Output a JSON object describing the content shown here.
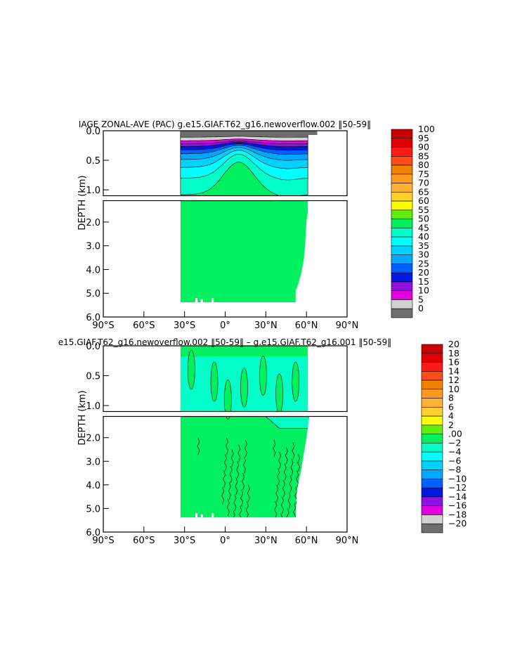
{
  "chart_data": [
    {
      "type": "heatmap",
      "subtype": "filled-contour",
      "title": "IAGE ZONAL-AVE (PAC) g.e15.GIAF.T62_g16.newoverflow.002  50-59 ",
      "title_display": "IAGE ZONAL-AVE (PAC) g.e15.GIAF.T62_g16.newoverflow.002 ‖50-59‖",
      "ylabel": "DEPTH (km)",
      "xlabel": "",
      "x_ticks": [
        "90°S",
        "60°S",
        "30°S",
        "0°",
        "30°N",
        "60°N",
        "90°N"
      ],
      "x_tick_values": [
        -90,
        -60,
        -30,
        0,
        30,
        60,
        90
      ],
      "xlim": [
        -90,
        90
      ],
      "y_ticks_upper": [
        "0.0",
        "0.5",
        "1.0"
      ],
      "y_ticks_upper_values": [
        0.0,
        0.5,
        1.0
      ],
      "y_ticks_lower": [
        "2.0",
        "3.0",
        "4.0",
        "5.0",
        "6.0"
      ],
      "y_ticks_lower_values": [
        2.0,
        3.0,
        4.0,
        5.0,
        6.0
      ],
      "ylim_upper": [
        0,
        1.1
      ],
      "ylim_lower": [
        1.1,
        6.0
      ],
      "data_extent_lat": [
        -33,
        64
      ],
      "colorbar": {
        "labels": [
          "100",
          "95",
          "90",
          "85",
          "80",
          "75",
          "70",
          "65",
          "60",
          "55",
          "50",
          "45",
          "40",
          "35",
          "30",
          "25",
          "20",
          "15",
          "10",
          "5",
          "0"
        ],
        "colors": [
          "#c80000",
          "#e00000",
          "#ff1a1a",
          "#ff4a1a",
          "#f08200",
          "#ff9a20",
          "#ffb030",
          "#ffd030",
          "#ffff00",
          "#60ee10",
          "#00f060",
          "#00ffc8",
          "#00ffff",
          "#00d2ff",
          "#00a8ff",
          "#0060ff",
          "#0018e0",
          "#9010e0",
          "#e000e0",
          "#d2d2d2",
          "#6e6e6e"
        ]
      },
      "dominant_value_range": "50-55"
    },
    {
      "type": "heatmap",
      "subtype": "filled-contour",
      "title": "e15.GIAF.T62_g16.newoverflow.002 ‖50-59‖ – g.e15.GIAF.T62_g16.001 ‖50-59‖",
      "ylabel": "DEPTH (km)",
      "xlabel": "",
      "x_ticks": [
        "90°S",
        "60°S",
        "30°S",
        "0°",
        "30°N",
        "60°N",
        "90°N"
      ],
      "x_tick_values": [
        -90,
        -60,
        -30,
        0,
        30,
        60,
        90
      ],
      "xlim": [
        -90,
        90
      ],
      "y_ticks_upper": [
        "0.0",
        "0.5",
        "1.0"
      ],
      "y_ticks_upper_values": [
        0.0,
        0.5,
        1.0
      ],
      "y_ticks_lower": [
        "2.0",
        "3.0",
        "4.0",
        "5.0",
        "6.0"
      ],
      "y_ticks_lower_values": [
        2.0,
        3.0,
        4.0,
        5.0,
        6.0
      ],
      "ylim_upper": [
        0,
        1.1
      ],
      "ylim_lower": [
        1.1,
        6.0
      ],
      "data_extent_lat": [
        -33,
        64
      ],
      "colorbar": {
        "labels": [
          "20",
          "18",
          "16",
          "14",
          "12",
          "10",
          "8",
          "6",
          "4",
          "2",
          ".00",
          "−2",
          "−4",
          "−6",
          "−8",
          "−10",
          "−12",
          "−14",
          "−16",
          "−18",
          "−20"
        ],
        "colors": [
          "#c80000",
          "#e00000",
          "#ff1a1a",
          "#ff4a1a",
          "#f08200",
          "#ff9a20",
          "#ffb030",
          "#ffd030",
          "#ffff00",
          "#60ee10",
          "#00f060",
          "#00ffc8",
          "#00ffff",
          "#00d2ff",
          "#00a8ff",
          "#0060ff",
          "#0018e0",
          "#9010e0",
          "#e000e0",
          "#d2d2d2",
          "#6e6e6e"
        ]
      },
      "dominant_value_range": "0-2 and -2-0"
    }
  ],
  "panels": [
    {
      "title": "IAGE ZONAL-AVE (PAC) g.e15.GIAF.T62_g16.newoverflow.002 ‖50-59‖",
      "ylabel": "DEPTH (km)"
    },
    {
      "title": "e15.GIAF.T62_g16.newoverflow.002 ‖50-59‖ – g.e15.GIAF.T62_g16.001 ‖50-59‖",
      "ylabel": "DEPTH (km)"
    }
  ]
}
